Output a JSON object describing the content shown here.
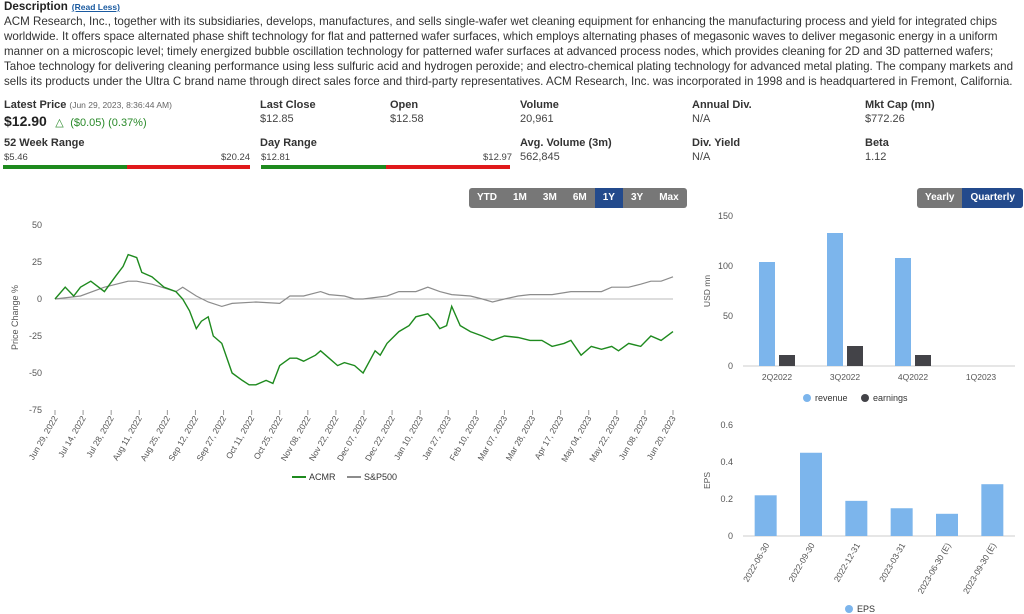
{
  "description": {
    "heading": "Description",
    "toggle": "(Read Less)",
    "text": "ACM Research, Inc., together with its subsidiaries, develops, manufactures, and sells single-wafer wet cleaning equipment for enhancing the manufacturing process and yield for integrated chips worldwide. It offers space alternated phase shift technology for flat and patterned wafer surfaces, which employs alternating phases of megasonic waves to deliver megasonic energy in a uniform manner on a microscopic level; timely energized bubble oscillation technology for patterned wafer surfaces at advanced process nodes, which provides cleaning for 2D and 3D patterned wafers; Tahoe technology for delivering cleaning performance using less sulfuric acid and hydrogen peroxide; and electro-chemical plating technology for advanced metal plating. The company markets and sells its products under the Ultra C brand name through direct sales force and third-party representatives. ACM Research, Inc. was incorporated in 1998 and is headquartered in Fremont, California."
  },
  "stats": {
    "latest_price": {
      "label": "Latest Price",
      "timestamp": "(Jun 29, 2023, 8:36:44 AM)",
      "value": "$12.90",
      "change": "($0.05) (0.37%)"
    },
    "last_close": {
      "label": "Last Close",
      "value": "$12.85"
    },
    "open": {
      "label": "Open",
      "value": "$12.58"
    },
    "volume": {
      "label": "Volume",
      "value": "20,961"
    },
    "annual_div": {
      "label": "Annual Div.",
      "value": "N/A"
    },
    "mkt_cap": {
      "label": "Mkt Cap (mn)",
      "value": "$772.26"
    },
    "week52": {
      "label": "52 Week Range",
      "low": "$5.46",
      "high": "$20.24",
      "position": 0.5
    },
    "day_range": {
      "label": "Day Range",
      "low": "$12.81",
      "high": "$12.97",
      "position": 0.5
    },
    "avg_volume": {
      "label": "Avg. Volume (3m)",
      "value": "562,845"
    },
    "div_yield": {
      "label": "Div. Yield",
      "value": "N/A"
    },
    "beta": {
      "label": "Beta",
      "value": "1.12"
    }
  },
  "range_buttons": {
    "items": [
      "YTD",
      "1M",
      "3M",
      "6M",
      "1Y",
      "3Y",
      "Max"
    ],
    "active": "1Y"
  },
  "period_buttons": {
    "items": [
      "Yearly",
      "Quarterly"
    ],
    "active": "Quarterly"
  },
  "colors": {
    "acmr": "#1e8a1e",
    "sp500": "#8c8c8c",
    "revenue": "#7cb5ec",
    "earnings": "#434348",
    "eps": "#7cb5ec",
    "range_low": "#1e8a1e",
    "range_high": "#e0191b",
    "button_active": "#234a8c"
  },
  "chart_data": [
    {
      "type": "line",
      "ylabel": "Price Change %",
      "ylim": [
        -75,
        50
      ],
      "yticks": [
        50,
        25,
        0,
        -25,
        -50,
        -75
      ],
      "x_tick_labels": [
        "Jun 29, 2022",
        "Jul 14, 2022",
        "Jul 28, 2022",
        "Aug 11, 2022",
        "Aug 25, 2022",
        "Sep 12, 2022",
        "Sep 27, 2022",
        "Oct 11, 2022",
        "Oct 25, 2022",
        "Nov 08, 2022",
        "Nov 22, 2022",
        "Dec 07, 2022",
        "Dec 22, 2022",
        "Jan 10, 2023",
        "Jan 27, 2023",
        "Feb 10, 2023",
        "Mar 07, 2023",
        "Mar 28, 2023",
        "Apr 17, 2023",
        "May 04, 2023",
        "May 22, 2023",
        "Jun 08, 2023",
        "Jun 20, 2023"
      ],
      "legend_position": "bottom",
      "series": [
        {
          "name": "ACMR",
          "x": [
            "2022-06-29",
            "2022-07-05",
            "2022-07-10",
            "2022-07-14",
            "2022-07-20",
            "2022-07-28",
            "2022-08-04",
            "2022-08-08",
            "2022-08-11",
            "2022-08-16",
            "2022-08-19",
            "2022-08-25",
            "2022-09-01",
            "2022-09-08",
            "2022-09-12",
            "2022-09-16",
            "2022-09-20",
            "2022-09-23",
            "2022-09-27",
            "2022-09-30",
            "2022-10-05",
            "2022-10-11",
            "2022-10-17",
            "2022-10-21",
            "2022-10-25",
            "2022-10-31",
            "2022-11-04",
            "2022-11-08",
            "2022-11-14",
            "2022-11-18",
            "2022-11-22",
            "2022-11-29",
            "2022-12-02",
            "2022-12-07",
            "2022-12-12",
            "2022-12-16",
            "2022-12-22",
            "2022-12-27",
            "2023-01-03",
            "2023-01-06",
            "2023-01-10",
            "2023-01-17",
            "2023-01-23",
            "2023-01-27",
            "2023-02-03",
            "2023-02-07",
            "2023-02-10",
            "2023-02-14",
            "2023-02-17",
            "2023-02-22",
            "2023-02-28",
            "2023-03-07",
            "2023-03-13",
            "2023-03-20",
            "2023-03-28",
            "2023-04-04",
            "2023-04-11",
            "2023-04-17",
            "2023-04-24",
            "2023-04-28",
            "2023-05-04",
            "2023-05-10",
            "2023-05-16",
            "2023-05-22",
            "2023-05-26",
            "2023-06-01",
            "2023-06-08",
            "2023-06-14",
            "2023-06-20",
            "2023-06-27"
          ],
          "values": [
            0,
            8,
            2,
            8,
            12,
            5,
            16,
            22,
            30,
            28,
            18,
            15,
            8,
            5,
            0,
            -8,
            -20,
            -15,
            -12,
            -25,
            -30,
            -50,
            -55,
            -58,
            -58,
            -55,
            -57,
            -45,
            -40,
            -40,
            -42,
            -38,
            -35,
            -40,
            -45,
            -43,
            -45,
            -50,
            -35,
            -38,
            -30,
            -22,
            -18,
            -12,
            -10,
            -15,
            -20,
            -18,
            -5,
            -18,
            -22,
            -25,
            -28,
            -25,
            -26,
            -28,
            -28,
            -32,
            -30,
            -28,
            -38,
            -32,
            -34,
            -32,
            -35,
            -30,
            -32,
            -25,
            -28,
            -22
          ]
        },
        {
          "name": "S&P500",
          "x": [
            "2022-06-29",
            "2022-07-14",
            "2022-07-28",
            "2022-08-11",
            "2022-08-16",
            "2022-08-25",
            "2022-09-08",
            "2022-09-12",
            "2022-09-20",
            "2022-09-27",
            "2022-10-05",
            "2022-10-11",
            "2022-10-25",
            "2022-11-08",
            "2022-11-14",
            "2022-11-22",
            "2022-12-02",
            "2022-12-07",
            "2022-12-16",
            "2022-12-22",
            "2022-12-27",
            "2023-01-10",
            "2023-01-17",
            "2023-01-27",
            "2023-02-03",
            "2023-02-10",
            "2023-02-17",
            "2023-02-28",
            "2023-03-07",
            "2023-03-13",
            "2023-03-20",
            "2023-03-28",
            "2023-04-04",
            "2023-04-17",
            "2023-04-28",
            "2023-05-04",
            "2023-05-16",
            "2023-05-22",
            "2023-06-01",
            "2023-06-08",
            "2023-06-14",
            "2023-06-20",
            "2023-06-27"
          ],
          "values": [
            0,
            2,
            8,
            12,
            12,
            10,
            5,
            8,
            2,
            -2,
            -5,
            -3,
            -2,
            -3,
            2,
            2,
            5,
            3,
            2,
            0,
            0,
            2,
            5,
            5,
            8,
            5,
            3,
            2,
            0,
            -2,
            0,
            2,
            3,
            3,
            5,
            5,
            5,
            8,
            8,
            10,
            12,
            12,
            15
          ]
        }
      ]
    },
    {
      "type": "bar",
      "categories": [
        "2Q2022",
        "3Q2022",
        "4Q2022",
        "1Q2023"
      ],
      "ylabel": "USD mn",
      "ylim": [
        0,
        150
      ],
      "yticks": [
        0,
        50,
        100,
        150
      ],
      "legend_position": "bottom",
      "series": [
        {
          "name": "revenue",
          "values": [
            104,
            133,
            108,
            null
          ]
        },
        {
          "name": "earnings",
          "values": [
            11,
            20,
            11,
            null
          ]
        }
      ]
    },
    {
      "type": "bar",
      "categories": [
        "2022-06-30",
        "2022-09-30",
        "2022-12-31",
        "2023-03-31",
        "2023-06-30 (E)",
        "2023-09-30 (E)"
      ],
      "ylabel": "EPS",
      "ylim": [
        0,
        0.6
      ],
      "yticks": [
        0,
        0.2,
        0.4,
        0.6
      ],
      "legend_position": "bottom",
      "series": [
        {
          "name": "EPS",
          "values": [
            0.22,
            0.45,
            0.19,
            0.15,
            0.12,
            0.28
          ]
        }
      ]
    }
  ]
}
